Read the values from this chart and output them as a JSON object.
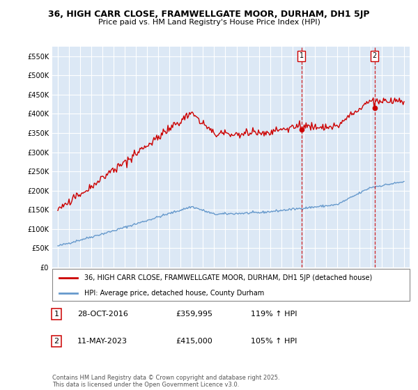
{
  "title": "36, HIGH CARR CLOSE, FRAMWELLGATE MOOR, DURHAM, DH1 5JP",
  "subtitle": "Price paid vs. HM Land Registry's House Price Index (HPI)",
  "red_label": "36, HIGH CARR CLOSE, FRAMWELLGATE MOOR, DURHAM, DH1 5JP (detached house)",
  "blue_label": "HPI: Average price, detached house, County Durham",
  "marker1_label": "1",
  "marker1_date": "28-OCT-2016",
  "marker1_price": "£359,995",
  "marker1_hpi": "119% ↑ HPI",
  "marker1_x": 2016.83,
  "marker1_y": 359995,
  "marker2_label": "2",
  "marker2_date": "11-MAY-2023",
  "marker2_price": "£415,000",
  "marker2_hpi": "105% ↑ HPI",
  "marker2_x": 2023.36,
  "marker2_y": 415000,
  "ylim": [
    0,
    575000
  ],
  "xlim": [
    1994.5,
    2026.5
  ],
  "yticks": [
    0,
    50000,
    100000,
    150000,
    200000,
    250000,
    300000,
    350000,
    400000,
    450000,
    500000,
    550000
  ],
  "ytick_labels": [
    "£0",
    "£50K",
    "£100K",
    "£150K",
    "£200K",
    "£250K",
    "£300K",
    "£350K",
    "£400K",
    "£450K",
    "£500K",
    "£550K"
  ],
  "xticks": [
    1995,
    1996,
    1997,
    1998,
    1999,
    2000,
    2001,
    2002,
    2003,
    2004,
    2005,
    2006,
    2007,
    2008,
    2009,
    2010,
    2011,
    2012,
    2013,
    2014,
    2015,
    2016,
    2017,
    2018,
    2019,
    2020,
    2021,
    2022,
    2023,
    2024,
    2025,
    2026
  ],
  "red_color": "#cc0000",
  "blue_color": "#6699cc",
  "bg_color": "#dce8f5",
  "grid_color": "#ffffff",
  "vline_color": "#cc0000",
  "footer": "Contains HM Land Registry data © Crown copyright and database right 2025.\nThis data is licensed under the Open Government Licence v3.0.",
  "title_fontsize": 9,
  "subtitle_fontsize": 8
}
